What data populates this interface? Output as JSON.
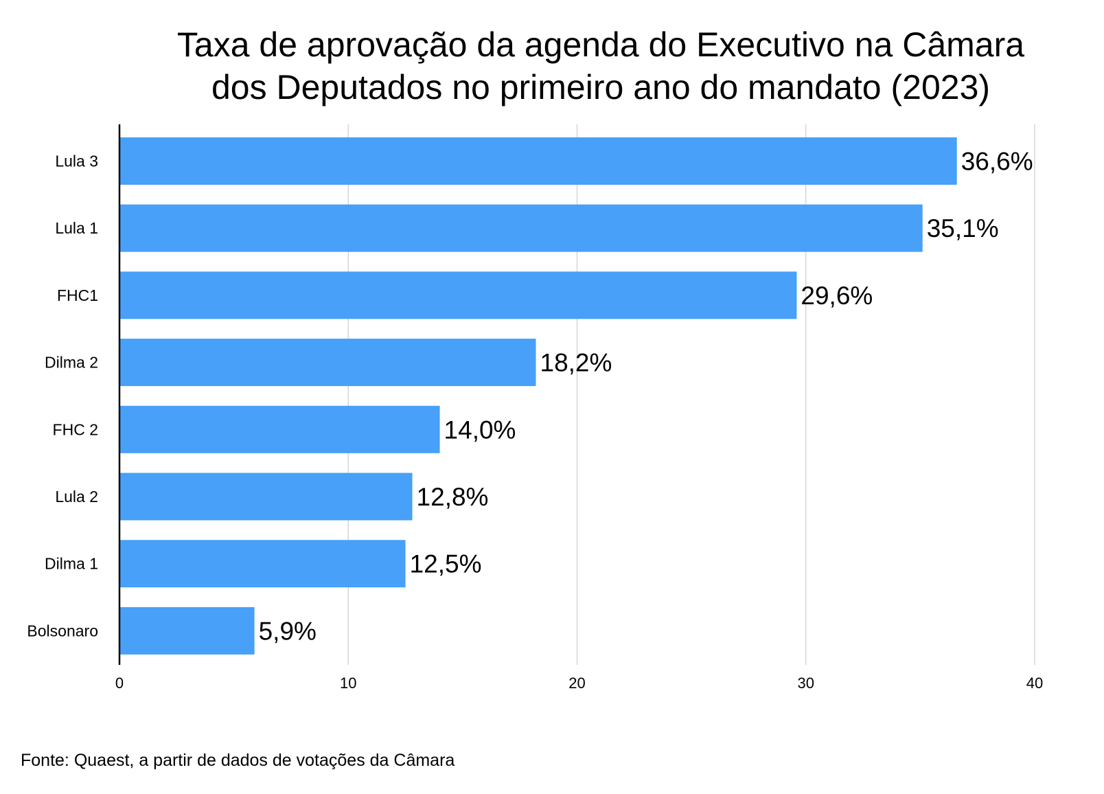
{
  "chart_data": {
    "type": "bar",
    "orientation": "horizontal",
    "title_lines": [
      "Taxa de aprovação da agenda do Executivo na Câmara",
      "dos Deputados no primeiro ano do mandato (2023)"
    ],
    "categories": [
      "Lula 3",
      "Lula 1",
      "FHC1",
      "Dilma 2",
      "FHC 2",
      "Lula 2",
      "Dilma 1",
      "Bolsonaro"
    ],
    "values": [
      36.6,
      35.1,
      29.6,
      18.2,
      14.0,
      12.8,
      12.5,
      5.9
    ],
    "data_labels": [
      "36,6%",
      "35,1%",
      "29,6%",
      "18,2%",
      "14,0%",
      "12,8%",
      "12,5%",
      "5,9%"
    ],
    "xlim": [
      0,
      40
    ],
    "x_ticks": [
      0,
      10,
      20,
      30,
      40
    ],
    "grid": true,
    "legend": "none",
    "bar_color": "#48a0f8",
    "xlabel": "",
    "ylabel": ""
  },
  "source_note": "Fonte: Quaest, a partir de dados de votações da Câmara"
}
